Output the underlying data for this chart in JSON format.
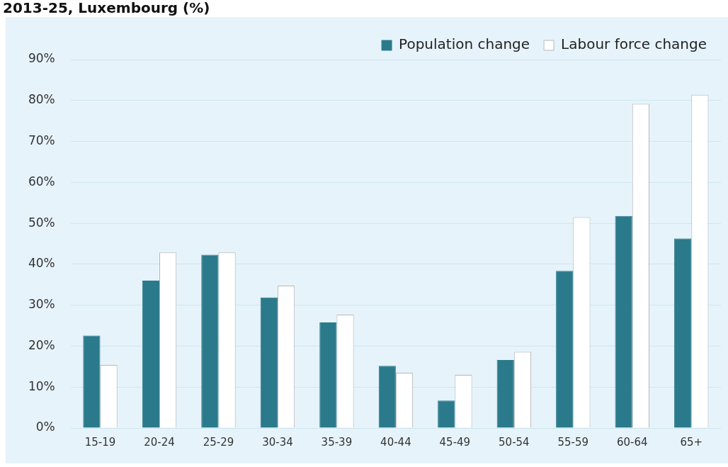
{
  "chart_data": {
    "type": "bar",
    "title": "2013-25, Luxembourg (%)",
    "categories": [
      "15-19",
      "20-24",
      "25-29",
      "30-34",
      "35-39",
      "40-44",
      "45-49",
      "50-54",
      "55-59",
      "60-64",
      "65+"
    ],
    "series": [
      {
        "name": "Population change",
        "color": "#2a7a8c",
        "values": [
          22.6,
          36.0,
          42.3,
          31.9,
          25.8,
          15.2,
          6.7,
          16.6,
          38.4,
          51.8,
          46.3
        ]
      },
      {
        "name": "Labour force change",
        "color": "#ffffff",
        "values": [
          15.4,
          42.9,
          42.9,
          34.8,
          27.7,
          13.5,
          13.0,
          18.6,
          51.5,
          79.2,
          81.4
        ]
      }
    ],
    "ylim": [
      0,
      90
    ],
    "yticks": [
      {
        "value": 0,
        "label": "0%"
      },
      {
        "value": 10,
        "label": "10%"
      },
      {
        "value": 20,
        "label": "20%"
      },
      {
        "value": 30,
        "label": "30%"
      },
      {
        "value": 40,
        "label": "40%"
      },
      {
        "value": 50,
        "label": "50%"
      },
      {
        "value": 60,
        "label": "60%"
      },
      {
        "value": 70,
        "label": "70%"
      },
      {
        "value": 80,
        "label": "80%"
      },
      {
        "value": 90,
        "label": "90%"
      }
    ],
    "grid": "y",
    "legend": "top right"
  }
}
